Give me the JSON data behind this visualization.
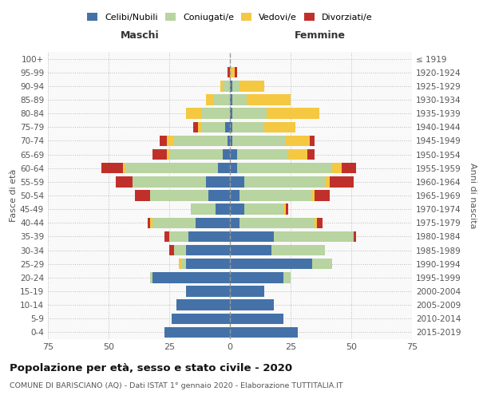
{
  "age_groups": [
    "0-4",
    "5-9",
    "10-14",
    "15-19",
    "20-24",
    "25-29",
    "30-34",
    "35-39",
    "40-44",
    "45-49",
    "50-54",
    "55-59",
    "60-64",
    "65-69",
    "70-74",
    "75-79",
    "80-84",
    "85-89",
    "90-94",
    "95-99",
    "100+"
  ],
  "birth_years": [
    "2015-2019",
    "2010-2014",
    "2005-2009",
    "2000-2004",
    "1995-1999",
    "1990-1994",
    "1985-1989",
    "1980-1984",
    "1975-1979",
    "1970-1974",
    "1965-1969",
    "1960-1964",
    "1955-1959",
    "1950-1954",
    "1945-1949",
    "1940-1944",
    "1935-1939",
    "1930-1934",
    "1925-1929",
    "1920-1924",
    "≤ 1919"
  ],
  "males": {
    "celibi": [
      27,
      24,
      22,
      18,
      32,
      18,
      18,
      17,
      14,
      6,
      9,
      10,
      5,
      3,
      1,
      2,
      0,
      0,
      0,
      0,
      0
    ],
    "coniugati": [
      0,
      0,
      0,
      0,
      1,
      2,
      5,
      8,
      18,
      10,
      24,
      30,
      38,
      22,
      22,
      10,
      12,
      7,
      3,
      0,
      0
    ],
    "vedovi": [
      0,
      0,
      0,
      0,
      0,
      1,
      0,
      0,
      1,
      0,
      0,
      0,
      1,
      1,
      3,
      1,
      6,
      3,
      1,
      0,
      0
    ],
    "divorziati": [
      0,
      0,
      0,
      0,
      0,
      0,
      2,
      2,
      1,
      0,
      6,
      7,
      9,
      6,
      3,
      2,
      0,
      0,
      0,
      1,
      0
    ]
  },
  "females": {
    "nubili": [
      28,
      22,
      18,
      14,
      22,
      34,
      17,
      18,
      4,
      6,
      4,
      6,
      3,
      3,
      1,
      1,
      1,
      1,
      1,
      0,
      0
    ],
    "coniugate": [
      0,
      0,
      0,
      0,
      3,
      8,
      22,
      33,
      31,
      16,
      30,
      33,
      39,
      21,
      22,
      13,
      14,
      6,
      3,
      0,
      0
    ],
    "vedove": [
      0,
      0,
      0,
      0,
      0,
      0,
      0,
      0,
      1,
      1,
      1,
      2,
      4,
      8,
      10,
      13,
      22,
      18,
      10,
      2,
      0
    ],
    "divorziate": [
      0,
      0,
      0,
      0,
      0,
      0,
      0,
      1,
      2,
      1,
      6,
      10,
      6,
      3,
      2,
      0,
      0,
      0,
      0,
      1,
      0
    ]
  },
  "colors": {
    "celibi": "#4472a8",
    "coniugati": "#b8d4a0",
    "vedovi": "#f5c842",
    "divorziati": "#c0302a"
  },
  "xlim": 75,
  "title": "Popolazione per età, sesso e stato civile - 2020",
  "subtitle": "COMUNE DI BARISCIANO (AQ) - Dati ISTAT 1° gennaio 2020 - Elaborazione TUTTITALIA.IT",
  "ylabel_left": "Fasce di età",
  "ylabel_right": "Anni di nascita",
  "xlabel_left": "Maschi",
  "xlabel_right": "Femmine"
}
